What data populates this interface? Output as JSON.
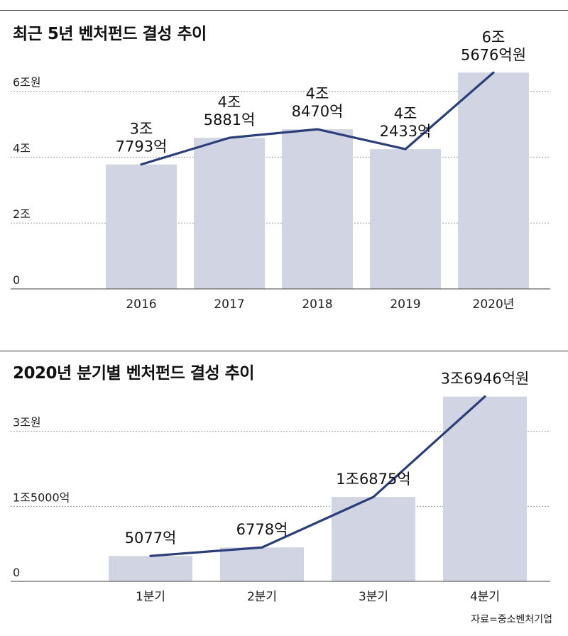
{
  "chart_data": [
    {
      "type": "bar",
      "title": "최근 5년 벤처펀드 결성 추이",
      "categories": [
        "2016",
        "2017",
        "2018",
        "2019",
        "2020년"
      ],
      "values": [
        3.7793,
        4.5881,
        4.847,
        4.2433,
        6.5676
      ],
      "value_labels": [
        [
          "3조",
          "7793억"
        ],
        [
          "4조",
          "5881억"
        ],
        [
          "4조",
          "8470억"
        ],
        [
          "4조",
          "2433억"
        ],
        [
          "6조",
          "5676억원"
        ]
      ],
      "ylim": [
        0,
        7.5
      ],
      "yticks": [
        {
          "value": 0,
          "label": "0"
        },
        {
          "value": 2,
          "label": "2조"
        },
        {
          "value": 4,
          "label": "4조"
        },
        {
          "value": 6,
          "label": "6조원"
        }
      ],
      "overlay_line": true,
      "grid": true,
      "colors": {
        "bar": "#d1d5e3",
        "line": "#2c3e78",
        "grid": "#9a9a9a"
      }
    },
    {
      "type": "bar",
      "title": "2020년 분기별 벤처펀드 결성 추이",
      "categories": [
        "1분기",
        "2분기",
        "3분기",
        "4분기"
      ],
      "values": [
        5077,
        6778,
        16875,
        36946
      ],
      "value_labels": [
        [
          "5077억"
        ],
        [
          "6778억"
        ],
        [
          "1조6875억"
        ],
        [
          "3조6946억원"
        ]
      ],
      "ylim": [
        0,
        44000
      ],
      "yticks": [
        {
          "value": 0,
          "label": "0"
        },
        {
          "value": 15000,
          "label": "1조5000억"
        },
        {
          "value": 30000,
          "label": "3조원"
        }
      ],
      "overlay_line": true,
      "grid": true,
      "colors": {
        "bar": "#d1d5e3",
        "line": "#2c3e78",
        "grid": "#9a9a9a"
      }
    }
  ],
  "source": "자료=중소벤처기업"
}
